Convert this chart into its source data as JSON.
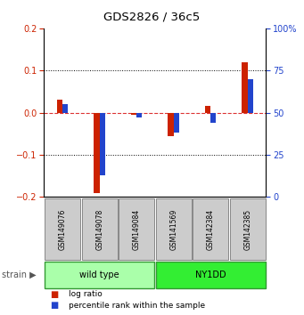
{
  "title": "GDS2826 / 36c5",
  "samples": [
    "GSM149076",
    "GSM149078",
    "GSM149084",
    "GSM141569",
    "GSM142384",
    "GSM142385"
  ],
  "log_ratio": [
    0.03,
    -0.19,
    -0.005,
    -0.055,
    0.015,
    0.12
  ],
  "percentile_rank_pct": [
    55,
    13,
    47,
    38,
    44,
    70
  ],
  "groups": [
    {
      "label": "wild type",
      "color": "#aaffaa",
      "size": 3
    },
    {
      "label": "NY1DD",
      "color": "#33ee33",
      "size": 3
    }
  ],
  "ylim": [
    -0.2,
    0.2
  ],
  "yticks_left": [
    -0.2,
    -0.1,
    0.0,
    0.1,
    0.2
  ],
  "bar_width": 0.3,
  "red_color": "#cc2200",
  "blue_color": "#2244cc",
  "zero_line_color": "#dd3333",
  "sample_box_color": "#cccccc",
  "strain_arrow": "▶",
  "legend_log_ratio": "log ratio",
  "legend_percentile": "percentile rank within the sample",
  "left_label_color": "#cc2200",
  "right_label_color": "#2244cc",
  "right_labels": [
    "0",
    "25",
    "50",
    "75",
    "100%"
  ]
}
